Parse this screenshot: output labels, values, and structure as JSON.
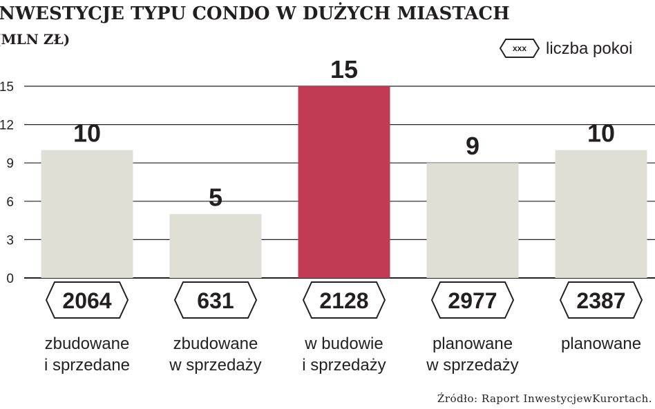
{
  "chart_data": {
    "type": "bar",
    "title": "INWESTYCJE TYPU CONDO W DUŻYCH MIASTACH",
    "subtitle": "(MLN ZŁ)",
    "categories": [
      [
        "zbudowane",
        "i sprzedane"
      ],
      [
        "zbudowane",
        "w sprzedaży"
      ],
      [
        "w budowie",
        "i sprzedaży"
      ],
      [
        "planowane",
        "w sprzedaży"
      ],
      [
        "planowane"
      ]
    ],
    "values": [
      10,
      5,
      15,
      9,
      10
    ],
    "value_labels": [
      "10",
      "5",
      "15",
      "9",
      "10"
    ],
    "rooms": [
      "2064",
      "631",
      "2128",
      "2977",
      "2387"
    ],
    "yticks": [
      "0",
      "3",
      "6",
      "9",
      "12",
      "15"
    ],
    "ylim": [
      0,
      15
    ],
    "grid": true,
    "legend": {
      "symbol_text": "xxx",
      "label": "liczba pokoi",
      "placement": "top-right"
    },
    "colors": {
      "bar": "#e0dfd6",
      "highlight": "#c03b53",
      "grid": "#231f20"
    },
    "highlight_index": 2,
    "source": "Źródło: Raport InwestycjewKurortach."
  }
}
